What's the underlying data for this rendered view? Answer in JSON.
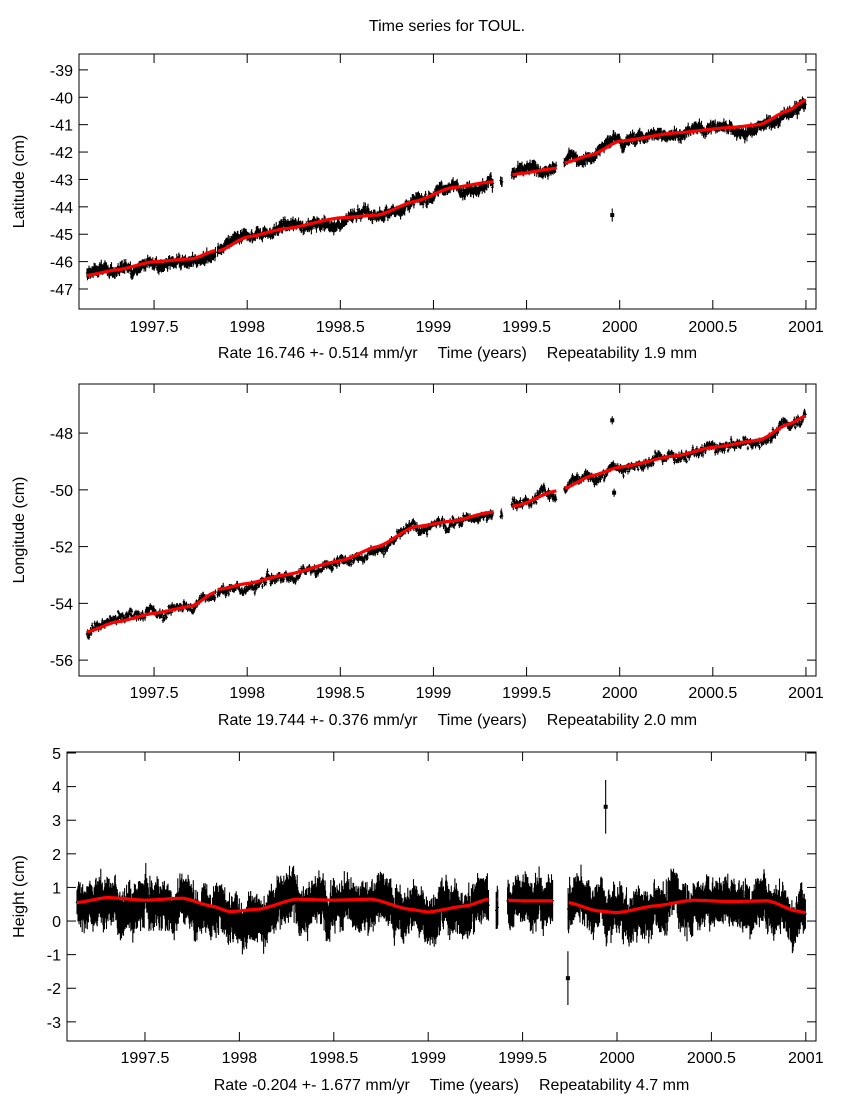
{
  "title": "Time series for TOUL.",
  "colors": {
    "data": "#000000",
    "fit": "#ff0000",
    "axis": "#000000"
  },
  "chart_data": [
    {
      "type": "scatter",
      "name": "latitude",
      "ylabel": "Latitude (cm)",
      "xlabel_parts": {
        "rate": "Rate 16.746 +- 0.514 mm/yr",
        "axis": "Time (years)",
        "repeat": "Repeatability 1.9 mm"
      },
      "xlim": [
        1997.097,
        2001.054
      ],
      "ylim": [
        -47.73,
        -38.42
      ],
      "xticks": [
        1997.5,
        1998,
        1998.5,
        1999,
        1999.5,
        2000,
        2000.5,
        2001
      ],
      "xtick_labels": [
        "1997.5",
        "1998",
        "1998.5",
        "1999",
        "1999.5",
        "2000",
        "2000.5",
        "2001"
      ],
      "yticks": [
        -39,
        -40,
        -41,
        -42,
        -43,
        -44,
        -45,
        -46,
        -47
      ],
      "ytick_labels": [
        "-39",
        "-40",
        "-41",
        "-42",
        "-43",
        "-44",
        "-45",
        "-46",
        "-47"
      ],
      "noise": 0.22,
      "err": 0.15,
      "gaps": [
        [
          1997.83,
          1997.84
        ],
        [
          1999.32,
          1999.36
        ],
        [
          1999.37,
          1999.42
        ],
        [
          1999.66,
          1999.7
        ]
      ],
      "outliers": [
        [
          1999.96,
          -44.3
        ]
      ],
      "fit": {
        "x": [
          1997.14,
          1997.3,
          1997.5,
          1997.7,
          1997.83,
          1997.85,
          1998.0,
          1998.2,
          1998.5,
          1998.7,
          1998.9,
          1999.1,
          1999.3,
          1999.45,
          1999.65,
          1999.7,
          1999.85,
          2000.0,
          2000.3,
          2000.6,
          2000.75,
          2000.9,
          2001.0
        ],
        "y": [
          -46.5,
          -46.3,
          -46.0,
          -45.9,
          -45.6,
          -45.6,
          -45.1,
          -44.8,
          -44.4,
          -44.3,
          -43.8,
          -43.3,
          -43.1,
          -42.8,
          -42.6,
          -42.4,
          -42.1,
          -41.6,
          -41.3,
          -41.1,
          -41.0,
          -40.5,
          -40.1
        ]
      }
    },
    {
      "type": "scatter",
      "name": "longitude",
      "ylabel": "Longitude (cm)",
      "xlabel_parts": {
        "rate": "Rate 19.744 +- 0.376 mm/yr",
        "axis": "Time (years)",
        "repeat": "Repeatability 2.0 mm"
      },
      "xlim": [
        1997.097,
        2001.054
      ],
      "ylim": [
        -56.56,
        -46.27
      ],
      "xticks": [
        1997.5,
        1998,
        1998.5,
        1999,
        1999.5,
        2000,
        2000.5,
        2001
      ],
      "xtick_labels": [
        "1997.5",
        "1998",
        "1998.5",
        "1999",
        "1999.5",
        "2000",
        "2000.5",
        "2001"
      ],
      "yticks": [
        -48,
        -50,
        -52,
        -54,
        -56
      ],
      "ytick_labels": [
        "-48",
        "-50",
        "-52",
        "-54",
        "-56"
      ],
      "noise": 0.22,
      "err": 0.09,
      "gaps": [
        [
          1997.83,
          1997.84
        ],
        [
          1999.32,
          1999.36
        ],
        [
          1999.37,
          1999.42
        ],
        [
          1999.66,
          1999.7
        ]
      ],
      "outliers": [
        [
          1999.96,
          -47.55
        ],
        [
          1999.97,
          -50.1
        ]
      ],
      "fit": {
        "x": [
          1997.14,
          1997.3,
          1997.5,
          1997.7,
          1997.83,
          1997.85,
          1998.0,
          1998.2,
          1998.5,
          1998.7,
          1998.9,
          1999.1,
          1999.3,
          1999.45,
          1999.65,
          1999.7,
          1999.85,
          2000.0,
          2000.3,
          2000.5,
          2000.75,
          2000.9,
          2001.0
        ],
        "y": [
          -55.0,
          -54.65,
          -54.35,
          -54.1,
          -53.6,
          -53.5,
          -53.3,
          -53.0,
          -52.5,
          -52.0,
          -51.3,
          -51.1,
          -50.8,
          -50.55,
          -50.05,
          -49.95,
          -49.5,
          -49.2,
          -48.8,
          -48.5,
          -48.25,
          -47.7,
          -47.4
        ]
      }
    },
    {
      "type": "scatter",
      "name": "height",
      "ylabel": "Height (cm)",
      "xlabel_parts": {
        "rate": "Rate -0.204 +- 1.677 mm/yr",
        "axis": "Time (years)",
        "repeat": "Repeatability 4.7 mm"
      },
      "xlim": [
        1997.087,
        2001.054
      ],
      "ylim": [
        -3.57,
        5.03
      ],
      "xticks": [
        1997.5,
        1998,
        1998.5,
        1999,
        1999.5,
        2000,
        2000.5,
        2001
      ],
      "xtick_labels": [
        "1997.5",
        "1998",
        "1998.5",
        "1999",
        "1999.5",
        "2000",
        "2000.5",
        "2001"
      ],
      "yticks": [
        5,
        4,
        3,
        2,
        1,
        0,
        -1,
        -2,
        -3
      ],
      "ytick_labels": [
        "5",
        "4",
        "3",
        "2",
        "1",
        "0",
        "-1",
        "-2",
        "-3"
      ],
      "noise": 0.45,
      "err": 0.5,
      "gaps": [
        [
          1999.32,
          1999.36
        ],
        [
          1999.37,
          1999.42
        ],
        [
          1999.66,
          1999.74
        ]
      ],
      "outliers": [
        [
          1999.94,
          3.4
        ],
        [
          1999.74,
          -1.7
        ]
      ],
      "fit": {
        "x": [
          1997.14,
          1997.3,
          1997.5,
          1997.7,
          1997.85,
          1997.95,
          1998.1,
          1998.3,
          1998.5,
          1998.7,
          1998.9,
          1999.0,
          1999.2,
          1999.32,
          1999.5,
          1999.65,
          1999.74,
          1999.9,
          2000.0,
          2000.2,
          2000.4,
          2000.6,
          2000.8,
          2000.95,
          2001.0
        ],
        "y": [
          0.55,
          0.7,
          0.62,
          0.68,
          0.45,
          0.28,
          0.35,
          0.65,
          0.62,
          0.65,
          0.35,
          0.27,
          0.45,
          0.65,
          0.6,
          0.6,
          0.55,
          0.3,
          0.25,
          0.45,
          0.62,
          0.58,
          0.6,
          0.3,
          0.25
        ]
      }
    }
  ]
}
